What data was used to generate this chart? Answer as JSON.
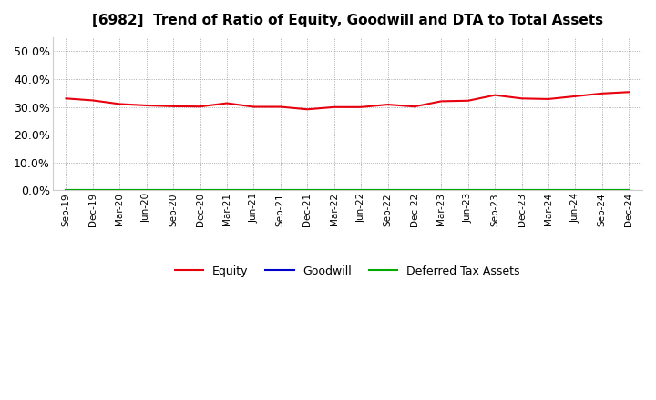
{
  "title": "[6982]  Trend of Ratio of Equity, Goodwill and DTA to Total Assets",
  "title_fontsize": 11,
  "x_labels": [
    "Sep-19",
    "Dec-19",
    "Mar-20",
    "Jun-20",
    "Sep-20",
    "Dec-20",
    "Mar-21",
    "Jun-21",
    "Sep-21",
    "Dec-21",
    "Mar-22",
    "Jun-22",
    "Sep-22",
    "Dec-22",
    "Mar-23",
    "Jun-23",
    "Sep-23",
    "Dec-23",
    "Mar-24",
    "Jun-24",
    "Sep-24",
    "Dec-24"
  ],
  "equity": [
    0.33,
    0.323,
    0.31,
    0.305,
    0.302,
    0.301,
    0.313,
    0.3,
    0.3,
    0.291,
    0.299,
    0.299,
    0.308,
    0.301,
    0.32,
    0.322,
    0.342,
    0.33,
    0.328,
    0.338,
    0.348,
    0.353
  ],
  "goodwill": [
    0.0,
    0.0,
    0.0,
    0.0,
    0.0,
    0.0,
    0.0,
    0.0,
    0.0,
    0.0,
    0.0,
    0.0,
    0.0,
    0.0,
    0.0,
    0.0,
    0.0,
    0.0,
    0.0,
    0.0,
    0.0,
    0.0
  ],
  "dta": [
    0.0,
    0.0,
    0.0,
    0.0,
    0.0,
    0.0,
    0.0,
    0.0,
    0.0,
    0.0,
    0.0,
    0.0,
    0.0,
    0.0,
    0.0,
    0.0,
    0.0,
    0.0,
    0.0,
    0.0,
    0.0,
    0.0
  ],
  "equity_color": "#e8000d",
  "goodwill_color": "#0000cd",
  "dta_color": "#00aa00",
  "ylim": [
    0.0,
    0.55
  ],
  "yticks": [
    0.0,
    0.1,
    0.2,
    0.3,
    0.4,
    0.5
  ],
  "bg_color": "#ffffff",
  "plot_bg_color": "#ffffff",
  "grid_color": "#999999",
  "legend_labels": [
    "Equity",
    "Goodwill",
    "Deferred Tax Assets"
  ]
}
